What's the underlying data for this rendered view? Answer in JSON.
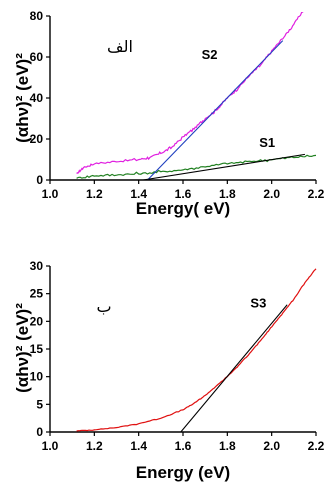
{
  "chart_data": [
    {
      "type": "line",
      "panel_label": "الف",
      "xlabel": "Energy( eV)",
      "ylabel": "(αhν)² (eV)²",
      "xlim": [
        1.0,
        2.2
      ],
      "ylim": [
        0,
        80
      ],
      "xticks": [
        "1.0",
        "1.2",
        "1.4",
        "1.6",
        "1.8",
        "2.0",
        "2.2"
      ],
      "yticks": [
        "0",
        "20",
        "40",
        "60",
        "80"
      ],
      "series": [
        {
          "name": "S2",
          "color": "#e020e0",
          "x": [
            1.12,
            1.15,
            1.2,
            1.3,
            1.4,
            1.45,
            1.5,
            1.55,
            1.6,
            1.65,
            1.7,
            1.75,
            1.8,
            1.85,
            1.9,
            1.95,
            2.0,
            2.05,
            2.1,
            2.15
          ],
          "y": [
            3,
            6,
            8,
            9,
            10,
            11,
            13,
            16,
            21,
            25,
            30,
            34,
            40,
            45,
            51,
            56,
            63,
            69,
            76,
            84
          ]
        },
        {
          "name": "S1",
          "color": "#208020",
          "x": [
            1.12,
            1.2,
            1.3,
            1.4,
            1.5,
            1.6,
            1.7,
            1.8,
            1.9,
            2.0,
            2.1,
            2.2
          ],
          "y": [
            1,
            2,
            2.5,
            3,
            4,
            5,
            6.5,
            8,
            9,
            10,
            11,
            12
          ]
        }
      ],
      "fit_lines": [
        {
          "series": "S2",
          "color": "#2040c0",
          "x": [
            1.44,
            2.05
          ],
          "y": [
            0,
            68
          ]
        },
        {
          "series": "S1",
          "color": "#000000",
          "x": [
            1.42,
            2.15
          ],
          "y": [
            0,
            12.5
          ]
        }
      ],
      "annotations": [
        {
          "text": "S2",
          "x": 1.72,
          "y": 59
        },
        {
          "text": "S1",
          "x": 1.98,
          "y": 16
        }
      ]
    },
    {
      "type": "line",
      "panel_label": "ب",
      "xlabel": "Energy (eV)",
      "ylabel": "(αhν)² (eV)²",
      "xlim": [
        1.0,
        2.2
      ],
      "ylim": [
        0,
        30
      ],
      "xticks": [
        "1.0",
        "1.2",
        "1.4",
        "1.6",
        "1.8",
        "2.0",
        "2.2"
      ],
      "yticks": [
        "0",
        "5",
        "10",
        "15",
        "20",
        "25",
        "30"
      ],
      "series": [
        {
          "name": "S3",
          "color": "#e01010",
          "x": [
            1.12,
            1.2,
            1.3,
            1.4,
            1.5,
            1.6,
            1.65,
            1.7,
            1.75,
            1.8,
            1.85,
            1.9,
            1.95,
            2.0,
            2.05,
            2.1,
            2.15,
            2.2
          ],
          "y": [
            0.2,
            0.4,
            0.8,
            1.5,
            2.5,
            4.0,
            5.2,
            6.6,
            8.3,
            10.0,
            12.0,
            14.2,
            16.5,
            19.0,
            21.5,
            24.0,
            27.0,
            29.5
          ]
        }
      ],
      "fit_lines": [
        {
          "series": "S3",
          "color": "#000000",
          "x": [
            1.59,
            2.07
          ],
          "y": [
            0,
            23
          ]
        }
      ],
      "annotations": [
        {
          "text": "S3",
          "x": 1.94,
          "y": 22.5
        }
      ]
    }
  ]
}
